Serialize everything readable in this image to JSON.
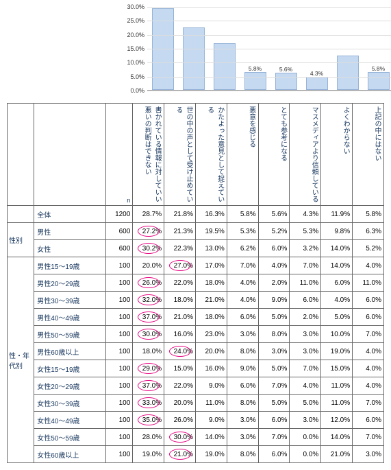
{
  "chart": {
    "ymax": 30,
    "ystep": 5,
    "values": [
      28.7,
      21.8,
      16.3,
      5.8,
      5.6,
      4.3,
      11.9,
      5.8
    ],
    "bar_color": "#c5d9f1",
    "bar_border": "#95b3d7",
    "grid_color": "#ddd"
  },
  "headers": [
    "書かれている情報に対していい悪いの判断はできない",
    "世の中の声として受け止めている",
    "かたよった意見として捉えている",
    "悪意を感じる",
    "とても参考になる",
    "マスメディアより信頼している",
    "よくわからない",
    "上記の中にはない"
  ],
  "n_label": "n",
  "groups": [
    {
      "label": "",
      "rows": [
        {
          "label": "全体",
          "n": 1200,
          "vals": [
            "28.7%",
            "21.8%",
            "16.3%",
            "5.8%",
            "5.6%",
            "4.3%",
            "11.9%",
            "5.8%"
          ],
          "circ": []
        }
      ]
    },
    {
      "label": "性別",
      "rows": [
        {
          "label": "男性",
          "n": 600,
          "vals": [
            "27.2%",
            "21.3%",
            "19.5%",
            "5.3%",
            "5.2%",
            "5.3%",
            "9.8%",
            "6.3%"
          ],
          "circ": [
            0
          ]
        },
        {
          "label": "女性",
          "n": 600,
          "vals": [
            "30.2%",
            "22.3%",
            "13.0%",
            "6.2%",
            "6.0%",
            "3.2%",
            "14.0%",
            "5.2%"
          ],
          "circ": [
            0
          ]
        }
      ]
    },
    {
      "label": "性・年代別",
      "rows": [
        {
          "label": "男性15～19歳",
          "n": 100,
          "vals": [
            "20.0%",
            "27.0%",
            "17.0%",
            "7.0%",
            "4.0%",
            "7.0%",
            "14.0%",
            "4.0%"
          ],
          "circ": [
            1
          ]
        },
        {
          "label": "男性20～29歳",
          "n": 100,
          "vals": [
            "26.0%",
            "22.0%",
            "18.0%",
            "4.0%",
            "2.0%",
            "11.0%",
            "6.0%",
            "11.0%"
          ],
          "circ": [
            0
          ]
        },
        {
          "label": "男性30～39歳",
          "n": 100,
          "vals": [
            "32.0%",
            "18.0%",
            "21.0%",
            "4.0%",
            "9.0%",
            "6.0%",
            "4.0%",
            "6.0%"
          ],
          "circ": [
            0
          ]
        },
        {
          "label": "男性40～49歳",
          "n": 100,
          "vals": [
            "37.0%",
            "21.0%",
            "18.0%",
            "6.0%",
            "5.0%",
            "2.0%",
            "5.0%",
            "6.0%"
          ],
          "circ": [
            0
          ]
        },
        {
          "label": "男性50～59歳",
          "n": 100,
          "vals": [
            "30.0%",
            "16.0%",
            "23.0%",
            "3.0%",
            "8.0%",
            "3.0%",
            "10.0%",
            "7.0%"
          ],
          "circ": [
            0
          ]
        },
        {
          "label": "男性60歳以上",
          "n": 100,
          "vals": [
            "18.0%",
            "24.0%",
            "20.0%",
            "8.0%",
            "3.0%",
            "3.0%",
            "19.0%",
            "4.0%"
          ],
          "circ": [
            1
          ]
        },
        {
          "label": "女性15～19歳",
          "n": 100,
          "vals": [
            "29.0%",
            "15.0%",
            "16.0%",
            "9.0%",
            "5.0%",
            "7.0%",
            "15.0%",
            "4.0%"
          ],
          "circ": [
            0
          ]
        },
        {
          "label": "女性20～29歳",
          "n": 100,
          "vals": [
            "37.0%",
            "22.0%",
            "9.0%",
            "6.0%",
            "7.0%",
            "4.0%",
            "11.0%",
            "4.0%"
          ],
          "circ": [
            0
          ]
        },
        {
          "label": "女性30～39歳",
          "n": 100,
          "vals": [
            "33.0%",
            "20.0%",
            "11.0%",
            "8.0%",
            "5.0%",
            "5.0%",
            "11.0%",
            "7.0%"
          ],
          "circ": [
            0
          ]
        },
        {
          "label": "女性40～49歳",
          "n": 100,
          "vals": [
            "35.0%",
            "26.0%",
            "9.0%",
            "3.0%",
            "6.0%",
            "3.0%",
            "12.0%",
            "6.0%"
          ],
          "circ": [
            0
          ]
        },
        {
          "label": "女性50～59歳",
          "n": 100,
          "vals": [
            "28.0%",
            "30.0%",
            "14.0%",
            "3.0%",
            "7.0%",
            "0.0%",
            "14.0%",
            "7.0%"
          ],
          "circ": [
            1
          ]
        },
        {
          "label": "女性60歳以上",
          "n": 100,
          "vals": [
            "19.0%",
            "21.0%",
            "19.0%",
            "8.0%",
            "6.0%",
            "0.0%",
            "21.0%",
            "3.0%"
          ],
          "circ": [
            1
          ]
        }
      ]
    }
  ]
}
